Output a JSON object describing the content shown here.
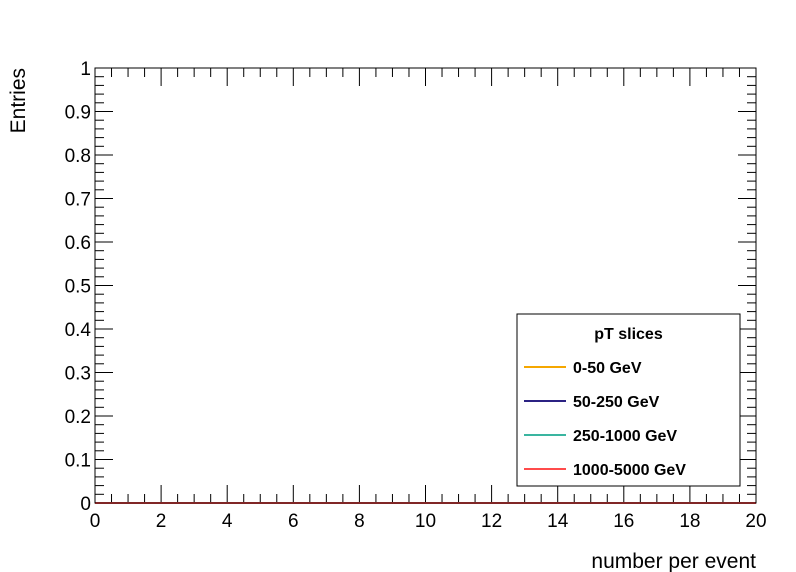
{
  "chart_data": {
    "type": "line",
    "title": "",
    "xlabel": "number per event",
    "ylabel": "Entries",
    "xlim": [
      0,
      20
    ],
    "ylim": [
      0,
      1
    ],
    "x_ticks": [
      0,
      2,
      4,
      6,
      8,
      10,
      12,
      14,
      16,
      18,
      20
    ],
    "y_ticks": [
      0,
      0.1,
      0.2,
      0.3,
      0.4,
      0.5,
      0.6,
      0.7,
      0.8,
      0.9,
      1
    ],
    "x_tick_labels": [
      "0",
      "2",
      "4",
      "6",
      "8",
      "10",
      "12",
      "14",
      "16",
      "18",
      "20"
    ],
    "y_tick_labels": [
      "0",
      "0.1",
      "0.2",
      "0.3",
      "0.4",
      "0.5",
      "0.6",
      "0.7",
      "0.8",
      "0.9",
      "1"
    ],
    "grid": false,
    "legend": {
      "title": "pT slices",
      "placement": "bottom-right"
    },
    "series": [
      {
        "name": "0-50 GeV",
        "color": "#f5a700",
        "x": [
          0,
          20
        ],
        "y": [
          0,
          0
        ]
      },
      {
        "name": "50-250 GeV",
        "color": "#2b2283",
        "x": [
          0,
          20
        ],
        "y": [
          0,
          0
        ]
      },
      {
        "name": "250-1000 GeV",
        "color": "#3ab5a0",
        "x": [
          0,
          20
        ],
        "y": [
          0,
          0
        ]
      },
      {
        "name": "1000-5000 GeV",
        "color": "#ff4b4b",
        "x": [
          0,
          20
        ],
        "y": [
          0,
          0
        ]
      }
    ]
  }
}
